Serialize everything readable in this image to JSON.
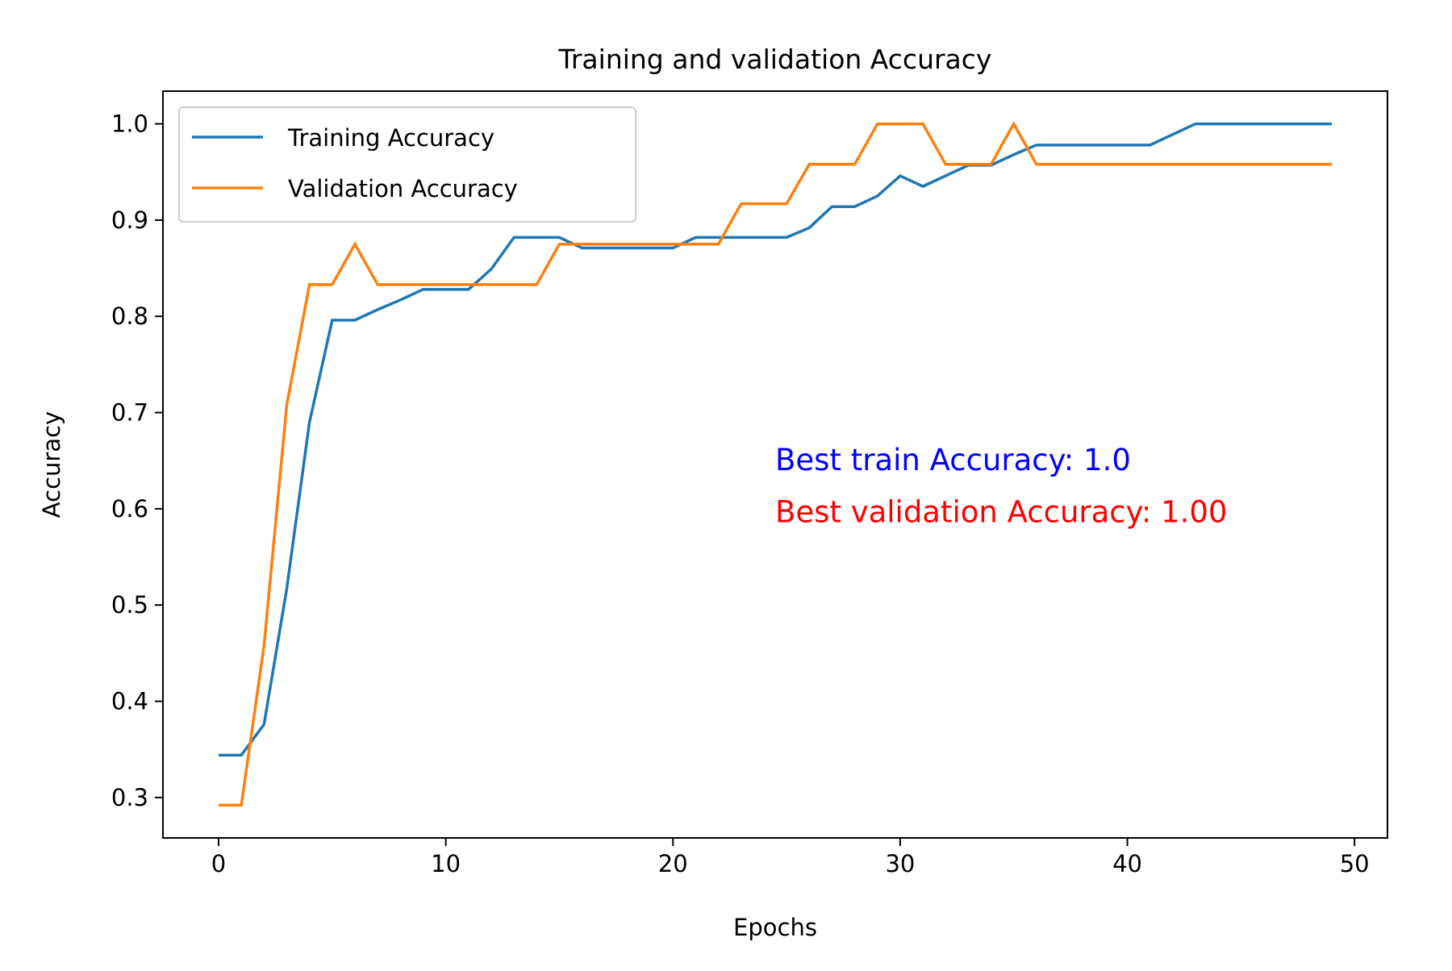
{
  "chart_data": {
    "type": "line",
    "title": "Training and validation Accuracy",
    "xlabel": "Epochs",
    "ylabel": "Accuracy",
    "xlim": [
      -2.45,
      51.45
    ],
    "ylim": [
      0.258,
      1.034
    ],
    "xticks": [
      0,
      10,
      20,
      30,
      40,
      50
    ],
    "xtick_labels": [
      "0",
      "10",
      "20",
      "30",
      "40",
      "50"
    ],
    "yticks": [
      0.3,
      0.4,
      0.5,
      0.6,
      0.7,
      0.8,
      0.9,
      1.0
    ],
    "ytick_labels": [
      "0.3",
      "0.4",
      "0.5",
      "0.6",
      "0.7",
      "0.8",
      "0.9",
      "1.0"
    ],
    "grid": false,
    "legend_position": "upper-left",
    "series": [
      {
        "name": "Training Accuracy",
        "color": "#1f77b4",
        "x": [
          0,
          1,
          2,
          3,
          4,
          5,
          6,
          7,
          8,
          9,
          10,
          11,
          12,
          13,
          14,
          15,
          16,
          17,
          18,
          19,
          20,
          21,
          22,
          23,
          24,
          25,
          26,
          27,
          28,
          29,
          30,
          31,
          32,
          33,
          34,
          35,
          36,
          37,
          38,
          39,
          40,
          41,
          42,
          43,
          44,
          45,
          46,
          47,
          48,
          49
        ],
        "values": [
          0.344,
          0.344,
          0.376,
          0.517,
          0.69,
          0.796,
          0.796,
          0.807,
          0.817,
          0.828,
          0.828,
          0.828,
          0.849,
          0.882,
          0.882,
          0.882,
          0.871,
          0.871,
          0.871,
          0.871,
          0.871,
          0.882,
          0.882,
          0.882,
          0.882,
          0.882,
          0.892,
          0.914,
          0.914,
          0.925,
          0.946,
          0.935,
          0.946,
          0.957,
          0.957,
          0.968,
          0.978,
          0.978,
          0.978,
          0.978,
          0.978,
          0.978,
          0.989,
          1.0,
          1.0,
          1.0,
          1.0,
          1.0,
          1.0,
          1.0
        ]
      },
      {
        "name": "Validation Accuracy",
        "color": "#ff7f0e",
        "x": [
          0,
          1,
          2,
          3,
          4,
          5,
          6,
          7,
          8,
          9,
          10,
          11,
          12,
          13,
          14,
          15,
          16,
          17,
          18,
          19,
          20,
          21,
          22,
          23,
          24,
          25,
          26,
          27,
          28,
          29,
          30,
          31,
          32,
          33,
          34,
          35,
          36,
          37,
          38,
          39,
          40,
          41,
          42,
          43,
          44,
          45,
          46,
          47,
          48,
          49
        ],
        "values": [
          0.292,
          0.292,
          0.458,
          0.708,
          0.833,
          0.833,
          0.875,
          0.833,
          0.833,
          0.833,
          0.833,
          0.833,
          0.833,
          0.833,
          0.833,
          0.875,
          0.875,
          0.875,
          0.875,
          0.875,
          0.875,
          0.875,
          0.875,
          0.917,
          0.917,
          0.917,
          0.958,
          0.958,
          0.958,
          1.0,
          1.0,
          1.0,
          0.958,
          0.958,
          0.958,
          1.0,
          0.958,
          0.958,
          0.958,
          0.958,
          0.958,
          0.958,
          0.958,
          0.958,
          0.958,
          0.958,
          0.958,
          0.958,
          0.958,
          0.958
        ]
      }
    ],
    "annotations": [
      {
        "text": "Best train Accuracy: 1.0",
        "color": "#0000ff",
        "x": 24.5,
        "y": 0.64
      },
      {
        "text": "Best validation Accuracy: 1.00",
        "color": "#ff0000",
        "x": 24.5,
        "y": 0.586
      }
    ]
  }
}
